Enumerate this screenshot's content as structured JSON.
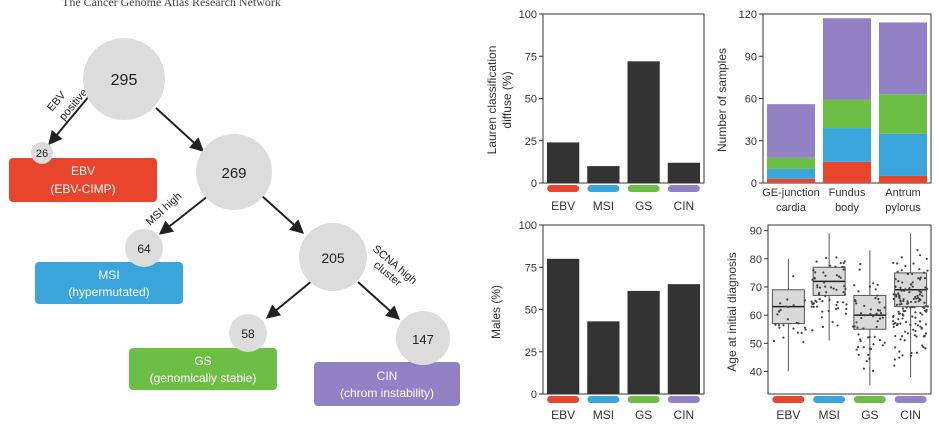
{
  "header": {
    "text": "The Cancer Genome Atlas Research Network"
  },
  "tree": {
    "nodes": {
      "root": {
        "value": "295"
      },
      "ebv": {
        "value": "26"
      },
      "n269": {
        "value": "269"
      },
      "msi": {
        "value": "64"
      },
      "n205": {
        "value": "205"
      },
      "gs": {
        "value": "58"
      },
      "cin": {
        "value": "147"
      }
    },
    "edge_labels": {
      "ebv_line1": "EBV",
      "ebv_line2": "positive",
      "msi": "MSI high",
      "scna_line1": "SCNA high",
      "scna_line2": "cluster"
    },
    "boxes": {
      "ebv": {
        "line1": "EBV",
        "line2": "(EBV-CIMP)",
        "color": "#e8452c"
      },
      "msi": {
        "line1": "MSI",
        "line2": "(hypermutated)",
        "color": "#3aa6dd"
      },
      "gs": {
        "line1": "GS",
        "line2": "(genomically stable)",
        "color": "#6cbe45"
      },
      "cin": {
        "line1": "CIN",
        "line2": "(chrom instability)",
        "color": "#9381c5"
      }
    }
  },
  "subtype_colors": {
    "EBV": "#e8452c",
    "MSI": "#3aa6dd",
    "GS": "#6cbe45",
    "CIN": "#9381c5"
  },
  "chart_data": [
    {
      "type": "bar",
      "categories": [
        "EBV",
        "MSI",
        "GS",
        "CIN"
      ],
      "values": [
        24,
        10,
        72,
        12
      ],
      "ylabel_line1": "Lauren classification",
      "ylabel_line2": "diffuse (%)",
      "ylim": [
        0,
        100
      ],
      "yticks": [
        0,
        25,
        50,
        75,
        100
      ],
      "bar_color": "#333333"
    },
    {
      "type": "bar",
      "categories": [
        "EBV",
        "MSI",
        "GS",
        "CIN"
      ],
      "values": [
        80,
        43,
        61,
        65
      ],
      "ylabel": "Males (%)",
      "ylim": [
        0,
        100
      ],
      "yticks": [
        0,
        25,
        50,
        75,
        100
      ],
      "bar_color": "#333333"
    },
    {
      "type": "stacked-bar",
      "categories": [
        {
          "line1": "GE-junction",
          "line2": "cardia"
        },
        {
          "line1": "Fundus",
          "line2": "body"
        },
        {
          "line1": "Antrum",
          "line2": "pylorus"
        }
      ],
      "ylabel": "Number of samples",
      "ylim": [
        0,
        120
      ],
      "yticks": [
        0,
        30,
        60,
        90,
        120
      ],
      "series": [
        {
          "subtype": "EBV",
          "values": [
            3,
            15,
            5
          ]
        },
        {
          "subtype": "MSI",
          "values": [
            7,
            24,
            30
          ]
        },
        {
          "subtype": "GS",
          "values": [
            8,
            20,
            28
          ]
        },
        {
          "subtype": "CIN",
          "values": [
            38,
            58,
            51
          ]
        }
      ]
    },
    {
      "type": "boxplot",
      "categories": [
        "EBV",
        "MSI",
        "GS",
        "CIN"
      ],
      "ylabel": "Age at initial diagnosis",
      "ylim": [
        32,
        92
      ],
      "yticks": [
        40,
        50,
        60,
        70,
        80,
        90
      ],
      "boxes": [
        {
          "min": 40,
          "q1": 57,
          "median": 63,
          "q3": 69,
          "max": 80,
          "n": 26
        },
        {
          "min": 51,
          "q1": 67,
          "median": 72,
          "q3": 77,
          "max": 89,
          "n": 64
        },
        {
          "min": 35,
          "q1": 55,
          "median": 60,
          "q3": 67,
          "max": 83,
          "n": 58
        },
        {
          "min": 38,
          "q1": 63,
          "median": 69,
          "q3": 75,
          "max": 89,
          "n": 147
        }
      ]
    }
  ]
}
